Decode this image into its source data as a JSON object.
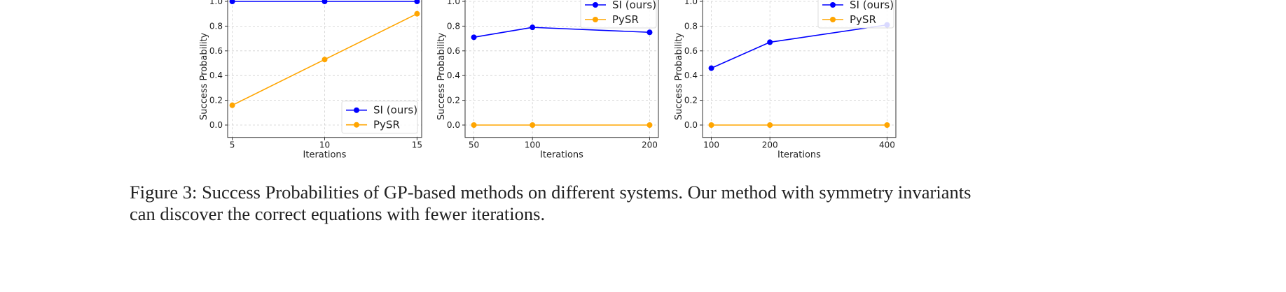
{
  "chart_data": [
    {
      "type": "line",
      "xlabel": "Iterations",
      "ylabel": "Success Probability",
      "x": [
        5,
        10,
        15
      ],
      "xticks": [
        "5",
        "10",
        "15"
      ],
      "xlim": [
        4.75,
        15.25
      ],
      "yticks": [
        "0.0",
        "0.2",
        "0.4",
        "0.6",
        "0.8",
        "1.0"
      ],
      "ylim": [
        -0.1,
        1.1
      ],
      "grid": true,
      "legend_position": "lower-right",
      "series": [
        {
          "name": "SI (ours)",
          "color": "#0000ff",
          "values": [
            1.0,
            1.0,
            1.0
          ]
        },
        {
          "name": "PySR",
          "color": "#ffa500",
          "values": [
            0.16,
            0.53,
            0.9
          ]
        }
      ]
    },
    {
      "type": "line",
      "xlabel": "Iterations",
      "ylabel": "Success Probability",
      "x": [
        50,
        100,
        200
      ],
      "xticks": [
        "50",
        "100",
        "200"
      ],
      "xlim": [
        42.5,
        207.5
      ],
      "yticks": [
        "0.0",
        "0.2",
        "0.4",
        "0.6",
        "0.8",
        "1.0"
      ],
      "ylim": [
        -0.1,
        1.1
      ],
      "grid": true,
      "legend_position": "upper-right",
      "series": [
        {
          "name": "SI (ours)",
          "color": "#0000ff",
          "values": [
            0.71,
            0.79,
            0.75
          ]
        },
        {
          "name": "PySR",
          "color": "#ffa500",
          "values": [
            0.0,
            0.0,
            0.0
          ]
        }
      ]
    },
    {
      "type": "line",
      "xlabel": "Iterations",
      "ylabel": "Success Probability",
      "x": [
        100,
        200,
        400
      ],
      "xticks": [
        "100",
        "200",
        "400"
      ],
      "xlim": [
        85,
        415
      ],
      "yticks": [
        "0.0",
        "0.2",
        "0.4",
        "0.6",
        "0.8",
        "1.0"
      ],
      "ylim": [
        -0.1,
        1.1
      ],
      "grid": true,
      "legend_position": "upper-right",
      "series": [
        {
          "name": "SI (ours)",
          "color": "#0000ff",
          "values": [
            0.46,
            0.67,
            0.81
          ]
        },
        {
          "name": "PySR",
          "color": "#ffa500",
          "values": [
            0.0,
            0.0,
            0.0
          ]
        }
      ]
    }
  ],
  "caption": {
    "label": "Figure 3:",
    "text": "Success Probabilities of GP-based methods on different systems.  Our method with symmetry invariants can discover the correct equations with fewer iterations."
  }
}
